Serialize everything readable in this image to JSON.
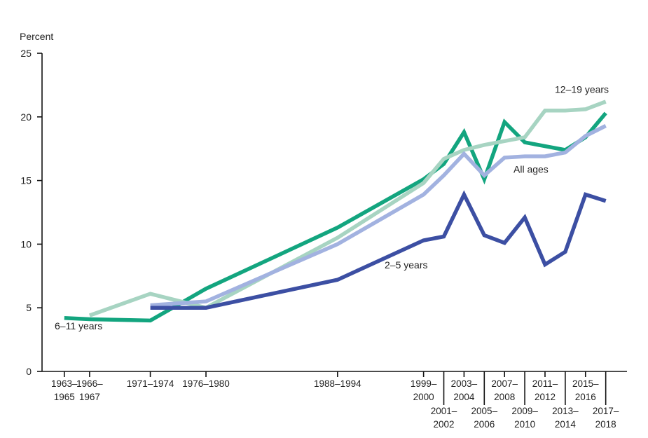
{
  "chart_data": {
    "type": "line",
    "ylabel": "Percent",
    "ylim": [
      0,
      25
    ],
    "yticks": [
      0,
      5,
      10,
      15,
      20,
      25
    ],
    "x_positions": [
      1964,
      1966.5,
      1972.5,
      1978,
      1991,
      1999.5,
      2001.5,
      2003.5,
      2005.5,
      2007.5,
      2009.5,
      2011.5,
      2013.5,
      2015.5,
      2017.5
    ],
    "x_labels": [
      {
        "x": 1964,
        "lines": [
          "1963–",
          "1965"
        ],
        "row": 1
      },
      {
        "x": 1966.5,
        "lines": [
          "1966–",
          "1967"
        ],
        "row": 1
      },
      {
        "x": 1972.5,
        "lines": [
          "1971–1974"
        ],
        "row": 1
      },
      {
        "x": 1978,
        "lines": [
          "1976–1980"
        ],
        "row": 1
      },
      {
        "x": 1991,
        "lines": [
          "1988–1994"
        ],
        "row": 1
      },
      {
        "x": 1999.5,
        "lines": [
          "1999–",
          "2000"
        ],
        "row": 1
      },
      {
        "x": 2001.5,
        "lines": [
          "2001–",
          "2002"
        ],
        "row": 2
      },
      {
        "x": 2003.5,
        "lines": [
          "2003–",
          "2004"
        ],
        "row": 1
      },
      {
        "x": 2005.5,
        "lines": [
          "2005–",
          "2006"
        ],
        "row": 2
      },
      {
        "x": 2007.5,
        "lines": [
          "2007–",
          "2008"
        ],
        "row": 1
      },
      {
        "x": 2009.5,
        "lines": [
          "2009–",
          "2010"
        ],
        "row": 2
      },
      {
        "x": 2011.5,
        "lines": [
          "2011–",
          "2012"
        ],
        "row": 1
      },
      {
        "x": 2013.5,
        "lines": [
          "2013–",
          "2014"
        ],
        "row": 2
      },
      {
        "x": 2015.5,
        "lines": [
          "2015–",
          "2016"
        ],
        "row": 1
      },
      {
        "x": 2017.5,
        "lines": [
          "2017–",
          "2018"
        ],
        "row": 2
      }
    ],
    "series": [
      {
        "name": "6–11 years",
        "color": "#13a57f",
        "x": [
          1964,
          1966.5,
          1972.5,
          1978,
          1991,
          1999.5,
          2001.5,
          2003.5,
          2005.5,
          2007.5,
          2009.5,
          2011.5,
          2013.5,
          2015.5,
          2017.5
        ],
        "values": [
          4.2,
          4.1,
          4.0,
          6.5,
          11.3,
          15.1,
          16.3,
          18.8,
          15.1,
          19.6,
          18.0,
          17.7,
          17.4,
          18.4,
          20.3
        ]
      },
      {
        "name": "12–19 years",
        "color": "#a7d4c2",
        "x": [
          1966.5,
          1972.5,
          1978,
          1991,
          1999.5,
          2001.5,
          2003.5,
          2005.5,
          2007.5,
          2009.5,
          2011.5,
          2013.5,
          2015.5,
          2017.5
        ],
        "values": [
          4.4,
          6.1,
          5.0,
          10.5,
          14.8,
          16.7,
          17.4,
          17.8,
          18.1,
          18.4,
          20.5,
          20.5,
          20.6,
          21.2
        ]
      },
      {
        "name": "All ages",
        "color": "#a2b2e0",
        "x": [
          1972.5,
          1978,
          1991,
          1999.5,
          2001.5,
          2003.5,
          2005.5,
          2007.5,
          2009.5,
          2011.5,
          2013.5,
          2015.5,
          2017.5
        ],
        "values": [
          5.2,
          5.5,
          10.0,
          13.9,
          15.4,
          17.1,
          15.4,
          16.8,
          16.9,
          16.9,
          17.2,
          18.5,
          19.3
        ]
      },
      {
        "name": "2–5 years",
        "color": "#3c4fa3",
        "x": [
          1972.5,
          1978,
          1991,
          1999.5,
          2001.5,
          2003.5,
          2005.5,
          2007.5,
          2009.5,
          2011.5,
          2013.5,
          2015.5,
          2017.5
        ],
        "values": [
          5.0,
          5.0,
          7.2,
          10.3,
          10.6,
          13.9,
          10.7,
          10.1,
          12.1,
          8.4,
          9.4,
          13.9,
          13.4
        ]
      }
    ],
    "series_labels": [
      {
        "series": 0,
        "text": "6–11 years",
        "anchor": {
          "x": 1964,
          "y": 3.3
        }
      },
      {
        "series": 1,
        "text": "12–19 years",
        "anchor": {
          "x": 2013.5,
          "y": 21.9
        }
      },
      {
        "series": 2,
        "text": "All ages",
        "anchor": {
          "x": 2009.2,
          "y": 15.6
        }
      },
      {
        "series": 3,
        "text": "2–5 years",
        "anchor": {
          "x": 1995.8,
          "y": 8.1
        }
      }
    ]
  }
}
